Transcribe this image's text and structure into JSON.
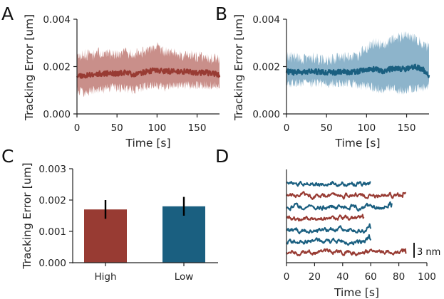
{
  "colors": {
    "high": "#983b33",
    "high_band": "#c98f8a",
    "low": "#1a5f80",
    "low_band": "#8db4cb",
    "axis": "#222222",
    "error_bar": "#000000"
  },
  "chart_data": [
    {
      "panel": "A",
      "type": "area",
      "title": "",
      "xlabel": "Time [s]",
      "ylabel": "Tracking Error [um]",
      "xlim": [
        0,
        178
      ],
      "ylim": [
        0,
        0.004
      ],
      "xticks": [
        0,
        50,
        100,
        150
      ],
      "yticks": [
        0,
        0.002,
        0.004
      ],
      "ytick_labels": [
        "0.000",
        "0.002",
        "0.004"
      ],
      "grid": false,
      "series": [
        {
          "x": [
            0,
            10,
            20,
            30,
            40,
            50,
            60,
            70,
            80,
            90,
            100,
            110,
            120,
            130,
            140,
            150,
            160,
            170,
            178
          ],
          "mean": [
            0.00165,
            0.0016,
            0.00168,
            0.0017,
            0.00172,
            0.0017,
            0.00175,
            0.00168,
            0.00173,
            0.0018,
            0.00185,
            0.0018,
            0.0018,
            0.00178,
            0.0018,
            0.00173,
            0.00175,
            0.0017,
            0.00165
          ],
          "lower": [
            0.001,
            0.0009,
            0.001,
            0.001,
            0.0011,
            0.0011,
            0.0011,
            0.001,
            0.0011,
            0.0012,
            0.0012,
            0.0011,
            0.0012,
            0.0012,
            0.0012,
            0.0012,
            0.0012,
            0.0012,
            0.0012
          ],
          "upper": [
            0.0024,
            0.0025,
            0.0025,
            0.0026,
            0.0025,
            0.0025,
            0.0026,
            0.0025,
            0.0026,
            0.0026,
            0.0028,
            0.0026,
            0.0026,
            0.0025,
            0.0025,
            0.0024,
            0.0024,
            0.0023,
            0.0023
          ]
        }
      ]
    },
    {
      "panel": "B",
      "type": "area",
      "title": "",
      "xlabel": "Time [s]",
      "ylabel": "Tracking Error [um]",
      "xlim": [
        0,
        178
      ],
      "ylim": [
        0,
        0.004
      ],
      "xticks": [
        0,
        50,
        100,
        150
      ],
      "yticks": [
        0,
        0.002,
        0.004
      ],
      "ytick_labels": [
        "0.000",
        "0.002",
        "0.004"
      ],
      "grid": false,
      "series": [
        {
          "x": [
            0,
            10,
            20,
            30,
            40,
            50,
            60,
            70,
            80,
            90,
            100,
            110,
            120,
            130,
            140,
            150,
            160,
            170,
            178
          ],
          "mean": [
            0.0018,
            0.00175,
            0.00178,
            0.0018,
            0.00178,
            0.00176,
            0.00175,
            0.00178,
            0.00176,
            0.0018,
            0.0019,
            0.0019,
            0.0018,
            0.0019,
            0.0019,
            0.0019,
            0.002,
            0.0019,
            0.0016
          ],
          "lower": [
            0.0013,
            0.0013,
            0.0013,
            0.0013,
            0.0013,
            0.0013,
            0.0013,
            0.0013,
            0.0013,
            0.0012,
            0.0012,
            0.0011,
            0.001,
            0.0011,
            0.001,
            0.001,
            0.0011,
            0.0011,
            0.0012
          ],
          "upper": [
            0.0024,
            0.0024,
            0.0023,
            0.0024,
            0.0023,
            0.0023,
            0.0023,
            0.0024,
            0.0024,
            0.0025,
            0.0028,
            0.003,
            0.0029,
            0.0031,
            0.0032,
            0.0033,
            0.0032,
            0.003,
            0.0028
          ]
        }
      ]
    },
    {
      "panel": "C",
      "type": "bar",
      "title": "",
      "xlabel": "",
      "ylabel": "Tracking Error [um]",
      "categories": [
        "High",
        "Low"
      ],
      "values": [
        0.0017,
        0.0018
      ],
      "errors": [
        0.0003,
        0.0003
      ],
      "ylim": [
        0,
        0.003
      ],
      "yticks": [
        0,
        0.001,
        0.002,
        0.003
      ],
      "ytick_labels": [
        "0.000",
        "0.001",
        "0.002",
        "0.003"
      ],
      "grid": false
    },
    {
      "panel": "D",
      "type": "line",
      "title": "",
      "xlabel": "Time [s]",
      "ylabel": "",
      "xlim": [
        0,
        100
      ],
      "xticks": [
        0,
        20,
        40,
        60,
        80,
        100
      ],
      "scale_bar_label": "3 nm",
      "grid": false,
      "traces": [
        {
          "group": "Low",
          "offset": 7,
          "duration": 60
        },
        {
          "group": "High",
          "offset": 6,
          "duration": 85
        },
        {
          "group": "Low",
          "offset": 5,
          "duration": 75
        },
        {
          "group": "High",
          "offset": 4,
          "duration": 55
        },
        {
          "group": "Low",
          "offset": 3,
          "duration": 60
        },
        {
          "group": "Low",
          "offset": 2,
          "duration": 60
        },
        {
          "group": "High",
          "offset": 1,
          "duration": 85
        }
      ]
    }
  ]
}
